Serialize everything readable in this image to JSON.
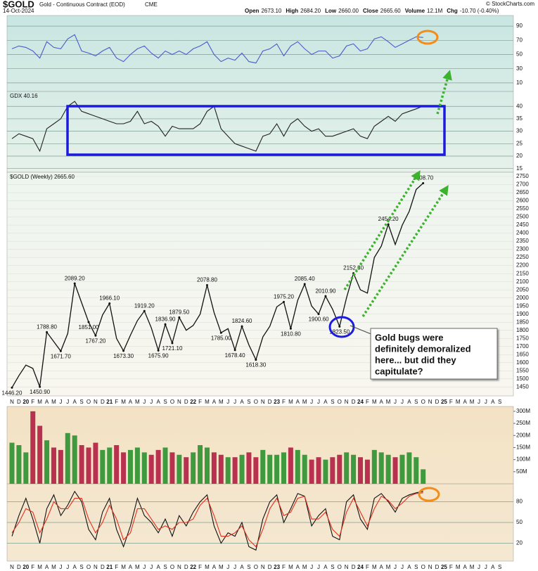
{
  "header": {
    "symbol": "$GOLD",
    "name": "Gold - Continuous Contract (EOD)",
    "exchange": "CME",
    "date": "14-Oct-2024",
    "stats": [
      {
        "label": "Open",
        "value": "2673.10"
      },
      {
        "label": "High",
        "value": "2684.20"
      },
      {
        "label": "Low",
        "value": "2660.00"
      },
      {
        "label": "Close",
        "value": "2665.60"
      },
      {
        "label": "Volume",
        "value": "12.1M"
      },
      {
        "label": "Chg",
        "value": "-10.70 (-0.40%)"
      }
    ],
    "credit": "© StockCharts.com"
  },
  "chart_data": [
    {
      "type": "line",
      "color": "#4a5cc9",
      "ylim": [
        -2,
        105
      ],
      "yticks": [
        90,
        70,
        50,
        30,
        10
      ],
      "grid": true,
      "values": [
        58,
        62,
        60,
        55,
        45,
        68,
        60,
        58,
        72,
        78,
        55,
        52,
        48,
        55,
        60,
        45,
        40,
        50,
        58,
        62,
        52,
        45,
        55,
        50,
        55,
        50,
        58,
        62,
        68,
        50,
        40,
        45,
        42,
        52,
        40,
        38,
        55,
        58,
        65,
        48,
        62,
        68,
        58,
        50,
        55,
        55,
        45,
        48,
        62,
        65,
        55,
        58,
        72,
        75,
        68,
        60,
        65,
        70,
        75,
        74,
        null,
        null,
        null,
        null,
        null,
        null,
        null,
        null,
        null,
        null,
        null
      ]
    },
    {
      "type": "line",
      "title": "GDX 40.16",
      "color": "#222222",
      "ylim": [
        13.5,
        46
      ],
      "yticks": [
        40,
        35,
        30,
        25,
        20,
        15
      ],
      "grid": true,
      "values": [
        27,
        29,
        28,
        27,
        22,
        31,
        33,
        35,
        40,
        42,
        38,
        37,
        36,
        35,
        34,
        33,
        33,
        34,
        38,
        33,
        34,
        32,
        28,
        32,
        31,
        31,
        31,
        33,
        38,
        40,
        31,
        28,
        25,
        24,
        23,
        22,
        28,
        29,
        33,
        28,
        33,
        35,
        32,
        30,
        31,
        28,
        28,
        29,
        30,
        31,
        28,
        27,
        32,
        34,
        36,
        34,
        37,
        38,
        39,
        40.16,
        null,
        null,
        null,
        null,
        null,
        null,
        null,
        null,
        null,
        null,
        null
      ]
    },
    {
      "type": "line",
      "title": "$GOLD (Weekly) 2665.60",
      "color": "#111111",
      "ylim": [
        1395,
        2776
      ],
      "yticks": [
        1450,
        1500,
        1550,
        1600,
        1650,
        1700,
        1750,
        1800,
        1850,
        1900,
        1950,
        2000,
        2050,
        2100,
        2150,
        2200,
        2250,
        2300,
        2350,
        2400,
        2450,
        2500,
        2550,
        2600,
        2650,
        2700,
        2750
      ],
      "grid": true,
      "categories": [
        "N",
        "D",
        "20",
        "F",
        "M",
        "A",
        "M",
        "J",
        "J",
        "A",
        "S",
        "O",
        "N",
        "D",
        "21",
        "F",
        "M",
        "A",
        "M",
        "J",
        "J",
        "A",
        "S",
        "O",
        "N",
        "D",
        "22",
        "F",
        "M",
        "A",
        "M",
        "J",
        "J",
        "A",
        "S",
        "O",
        "N",
        "D",
        "23",
        "F",
        "M",
        "A",
        "M",
        "J",
        "J",
        "A",
        "S",
        "O",
        "N",
        "D",
        "24",
        "F",
        "M",
        "A",
        "M",
        "J",
        "J",
        "A",
        "S",
        "O",
        "N",
        "D",
        "25",
        "F",
        "M",
        "A",
        "M",
        "J",
        "J",
        "A",
        "S"
      ],
      "values": [
        1446.2,
        1520,
        1585,
        1565,
        1450.9,
        1788.8,
        1730,
        1671.7,
        1780,
        2089.2,
        1970,
        1851,
        1767.2,
        1895,
        1966.1,
        1750,
        1673.3,
        1770,
        1860,
        1919.2,
        1815,
        1675.9,
        1836.9,
        1721.1,
        1879.5,
        1800,
        1830,
        1900,
        2078.8,
        1910,
        1785,
        1810,
        1678.4,
        1824.6,
        1710,
        1618.3,
        1760,
        1825,
        1945,
        1975.2,
        1810.8,
        1985,
        2085.4,
        1950,
        1900.6,
        2010.9,
        1930,
        1823.5,
        2000,
        2152.3,
        2050,
        2030,
        2250,
        2320,
        2454.2,
        2330,
        2450,
        2535,
        2670,
        2708.7,
        null,
        null,
        null,
        null,
        null,
        null,
        null,
        null,
        null,
        null,
        null
      ],
      "value_labels": [
        "1446.20",
        null,
        null,
        null,
        "1450.90",
        "1788.80",
        null,
        "1671.70",
        null,
        "2089.20",
        null,
        "1851.00",
        "1767.20",
        null,
        "1966.10",
        null,
        "1673.30",
        null,
        null,
        "1919.20",
        null,
        "1675.90",
        "1836.90",
        "1721.10",
        "1879.50",
        null,
        null,
        null,
        "2078.80",
        null,
        "1785.00",
        null,
        "1678.40",
        "1824.60",
        null,
        "1618.30",
        null,
        null,
        null,
        "1975.20",
        "1810.80",
        null,
        "2085.40",
        null,
        "1900.60",
        "2010.90",
        null,
        "1823.50",
        null,
        "2152.30",
        null,
        null,
        null,
        null,
        "2454.20",
        null,
        null,
        null,
        null,
        "2708.70",
        null,
        null,
        null,
        null,
        null,
        null,
        null,
        null,
        null,
        null,
        null
      ],
      "annotation": [
        "Gold bugs were",
        "definitely demoralized",
        "here... but did they",
        "capitulate?"
      ]
    },
    {
      "type": "bar",
      "up_color": "#3f9a3f",
      "down_color": "#b8324f",
      "ylim": [
        0,
        320
      ],
      "yticks": [
        {
          "value": 50,
          "label": "50M"
        },
        {
          "value": 100,
          "label": "100M"
        },
        {
          "value": 150,
          "label": "150M"
        },
        {
          "value": 200,
          "label": "200M"
        },
        {
          "value": 250,
          "label": "250M"
        },
        {
          "value": 300,
          "label": "300M"
        }
      ],
      "values": [
        170,
        160,
        130,
        300,
        240,
        180,
        150,
        140,
        210,
        200,
        160,
        150,
        170,
        140,
        150,
        160,
        130,
        140,
        150,
        130,
        120,
        140,
        150,
        130,
        120,
        110,
        130,
        160,
        150,
        130,
        120,
        110,
        110,
        120,
        130,
        110,
        140,
        120,
        120,
        130,
        150,
        140,
        120,
        100,
        110,
        100,
        110,
        120,
        130,
        120,
        110,
        100,
        140,
        130,
        120,
        110,
        120,
        130,
        110,
        60,
        null,
        null,
        null,
        null,
        null,
        null,
        null,
        null,
        null,
        null,
        null
      ]
    },
    {
      "type": "line",
      "ylim": [
        -6,
        106
      ],
      "yticks": [
        80,
        50,
        20
      ],
      "grid": true,
      "categories": [
        "N",
        "D",
        "20",
        "F",
        "M",
        "A",
        "M",
        "J",
        "J",
        "A",
        "S",
        "O",
        "N",
        "D",
        "21",
        "F",
        "M",
        "A",
        "M",
        "J",
        "J",
        "A",
        "S",
        "O",
        "N",
        "D",
        "22",
        "F",
        "M",
        "A",
        "M",
        "J",
        "J",
        "A",
        "S",
        "O",
        "N",
        "D",
        "23",
        "F",
        "M",
        "A",
        "M",
        "J",
        "J",
        "A",
        "S",
        "O",
        "N",
        "D",
        "24",
        "F",
        "M",
        "A",
        "M",
        "J",
        "J",
        "A",
        "S",
        "O",
        "N",
        "D",
        "25",
        "F",
        "M",
        "A",
        "M",
        "J",
        "J",
        "A",
        "S"
      ],
      "series": [
        {
          "color": "#111111",
          "values": [
            30,
            60,
            85,
            55,
            20,
            70,
            90,
            60,
            75,
            95,
            80,
            40,
            25,
            65,
            85,
            40,
            15,
            45,
            85,
            60,
            50,
            35,
            55,
            30,
            60,
            45,
            65,
            80,
            90,
            45,
            20,
            35,
            30,
            50,
            15,
            10,
            55,
            80,
            90,
            50,
            70,
            92,
            88,
            45,
            60,
            70,
            30,
            25,
            80,
            90,
            55,
            40,
            85,
            92,
            80,
            65,
            85,
            90,
            93,
            95,
            null,
            null,
            null,
            null,
            null,
            null,
            null,
            null,
            null,
            null,
            null
          ]
        },
        {
          "color": "#e0301e",
          "values": [
            35,
            50,
            70,
            65,
            35,
            55,
            80,
            70,
            70,
            85,
            85,
            55,
            35,
            50,
            75,
            55,
            25,
            35,
            70,
            70,
            55,
            40,
            45,
            40,
            50,
            50,
            55,
            75,
            85,
            60,
            30,
            30,
            35,
            45,
            25,
            15,
            40,
            70,
            85,
            60,
            65,
            85,
            88,
            55,
            55,
            65,
            40,
            30,
            65,
            85,
            65,
            45,
            70,
            88,
            82,
            70,
            78,
            88,
            92,
            93,
            null,
            null,
            null,
            null,
            null,
            null,
            null,
            null,
            null,
            null,
            null
          ]
        }
      ]
    }
  ]
}
